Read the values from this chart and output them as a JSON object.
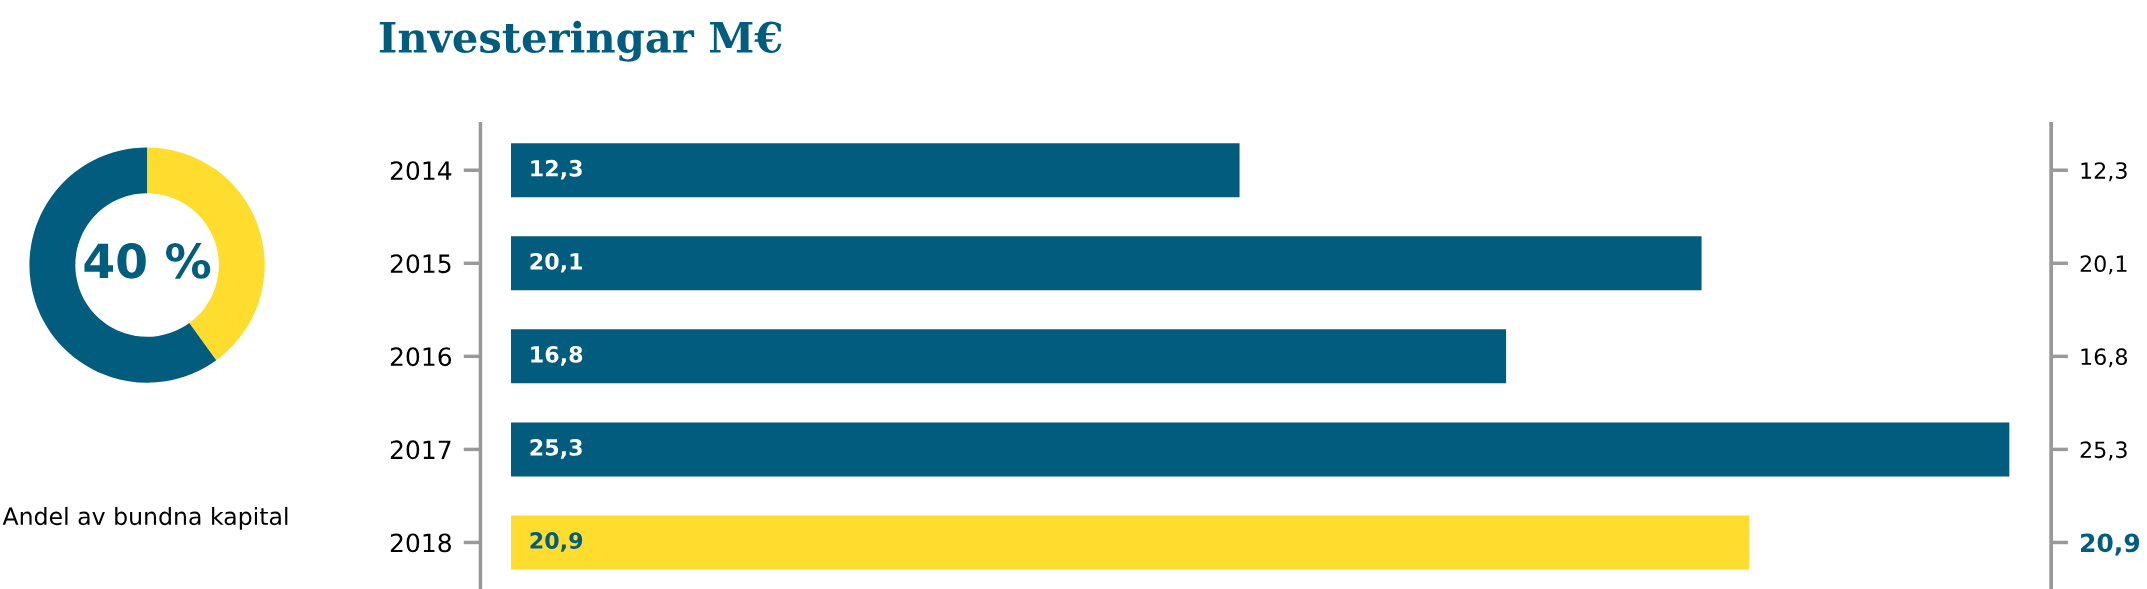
{
  "chart_data": [
    {
      "type": "donut",
      "xlabel": "Andel av bundna kapital",
      "categories": [
        null,
        null
      ],
      "values": [
        40,
        60
      ],
      "colors": [
        "#fedd2f",
        "#025c7e"
      ],
      "value_labels": [
        "40 %",
        null
      ]
    },
    {
      "type": "bar",
      "title": "Investeringar M€",
      "orientation": "horizontal",
      "categories": [
        "2014",
        "2015",
        "2016",
        "2017",
        "2018"
      ],
      "values": [
        12.3,
        20.1,
        16.8,
        25.3,
        20.9
      ],
      "value_labels": [
        "12,3",
        "20,1",
        "16,8",
        "25,3",
        "20,9"
      ],
      "colors": [
        "#025c7e",
        "#025c7e",
        "#025c7e",
        "#025c7e",
        "#fedd2f"
      ],
      "annotations": [
        "12,3",
        "20,1",
        "16,8",
        "25,3",
        "20,9"
      ]
    }
  ]
}
